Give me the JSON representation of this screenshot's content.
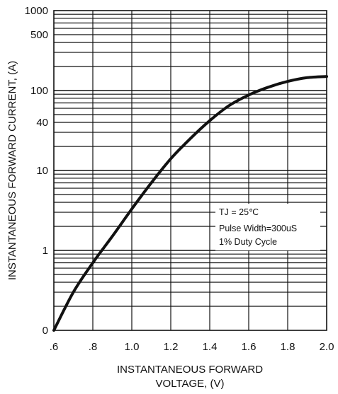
{
  "chart_data": {
    "type": "line",
    "ylabel": "INSTANTANEOUS FORWARD CURRENT, (A)",
    "xlabel_lines": [
      "INSTANTANEOUS FORWARD",
      "VOLTAGE, (V)"
    ],
    "x_tick_labels": [
      ".6",
      ".8",
      "1.0",
      "1.2",
      "1.4",
      "1.6",
      "1.8",
      "2.0"
    ],
    "y_tick_labels": [
      "1000",
      "500",
      "100",
      "40",
      "10",
      "1",
      "0"
    ],
    "xlim": [
      0.6,
      2.0
    ],
    "ylim_log": [
      0.1,
      1000
    ],
    "y_scale": "log",
    "grid": true,
    "annotation_lines": [
      "TJ = 25℃",
      "Pulse Width=300uS",
      "1% Duty Cycle"
    ],
    "series": [
      {
        "x": [
          0.6,
          0.7,
          0.8,
          0.9,
          1.0,
          1.1,
          1.2,
          1.3,
          1.4,
          1.5,
          1.6,
          1.7,
          1.8,
          1.9,
          2.0
        ],
        "y": [
          0.1,
          0.3,
          0.7,
          1.5,
          3.3,
          7,
          14,
          25,
          42,
          65,
          88,
          110,
          130,
          145,
          150
        ]
      }
    ],
    "line_color": "#111111"
  }
}
